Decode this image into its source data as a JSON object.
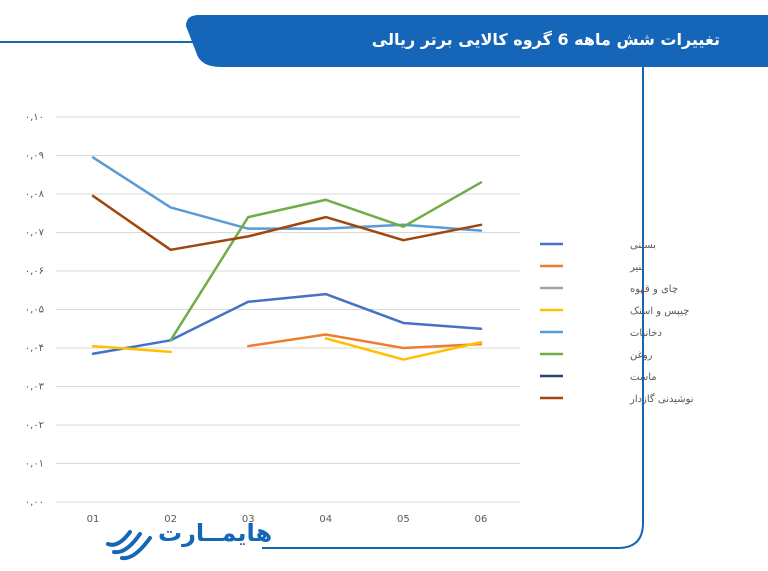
{
  "header": {
    "title": "تغییرات شش ماهه 6 گروه کالایی برتر ریالی"
  },
  "brand": {
    "name": "هایمــارت"
  },
  "colors": {
    "accent": "#1565b8"
  },
  "chart_data": {
    "type": "line",
    "categories": [
      "01",
      "02",
      "03",
      "04",
      "05",
      "06"
    ],
    "ylim": [
      0,
      0.1
    ],
    "y_tick_labels": [
      "۰,۰۰",
      "۰,۰۱",
      "۰,۰۲",
      "۰,۰۳",
      "۰,۰۴",
      "۰,۰۵",
      "۰,۰۶",
      "۰,۰۷",
      "۰,۰۸",
      "۰,۰۹",
      "۰,۱۰"
    ],
    "grid": true,
    "legend_position": "right",
    "series": [
      {
        "name": "بستنی",
        "color": "#4472c4",
        "values": [
          0.0385,
          0.042,
          0.052,
          0.054,
          0.0465,
          0.045
        ]
      },
      {
        "name": "پنیر",
        "color": "#ed7d31",
        "values": [
          null,
          null,
          0.0405,
          0.0435,
          0.04,
          0.041
        ]
      },
      {
        "name": "چای و قهوه",
        "color": "#a5a5a5",
        "values": [
          null,
          null,
          null,
          null,
          null,
          null
        ]
      },
      {
        "name": "چیپس و اسنک",
        "color": "#ffc000",
        "values": [
          0.0405,
          0.039,
          null,
          0.0425,
          0.037,
          0.0415
        ]
      },
      {
        "name": "دخانیات",
        "color": "#5b9bd5",
        "values": [
          0.0895,
          0.0765,
          0.071,
          0.071,
          0.072,
          0.0705
        ]
      },
      {
        "name": "روغن",
        "color": "#70ad47",
        "values": [
          null,
          0.042,
          0.074,
          0.0785,
          0.0715,
          0.083
        ]
      },
      {
        "name": "ماست",
        "color": "#264478",
        "values": [
          null,
          null,
          null,
          null,
          null,
          null
        ]
      },
      {
        "name": "نوشیدنی گازدار",
        "color": "#9e480e",
        "values": [
          0.0795,
          0.0655,
          0.069,
          0.074,
          0.068,
          0.072
        ]
      }
    ]
  }
}
